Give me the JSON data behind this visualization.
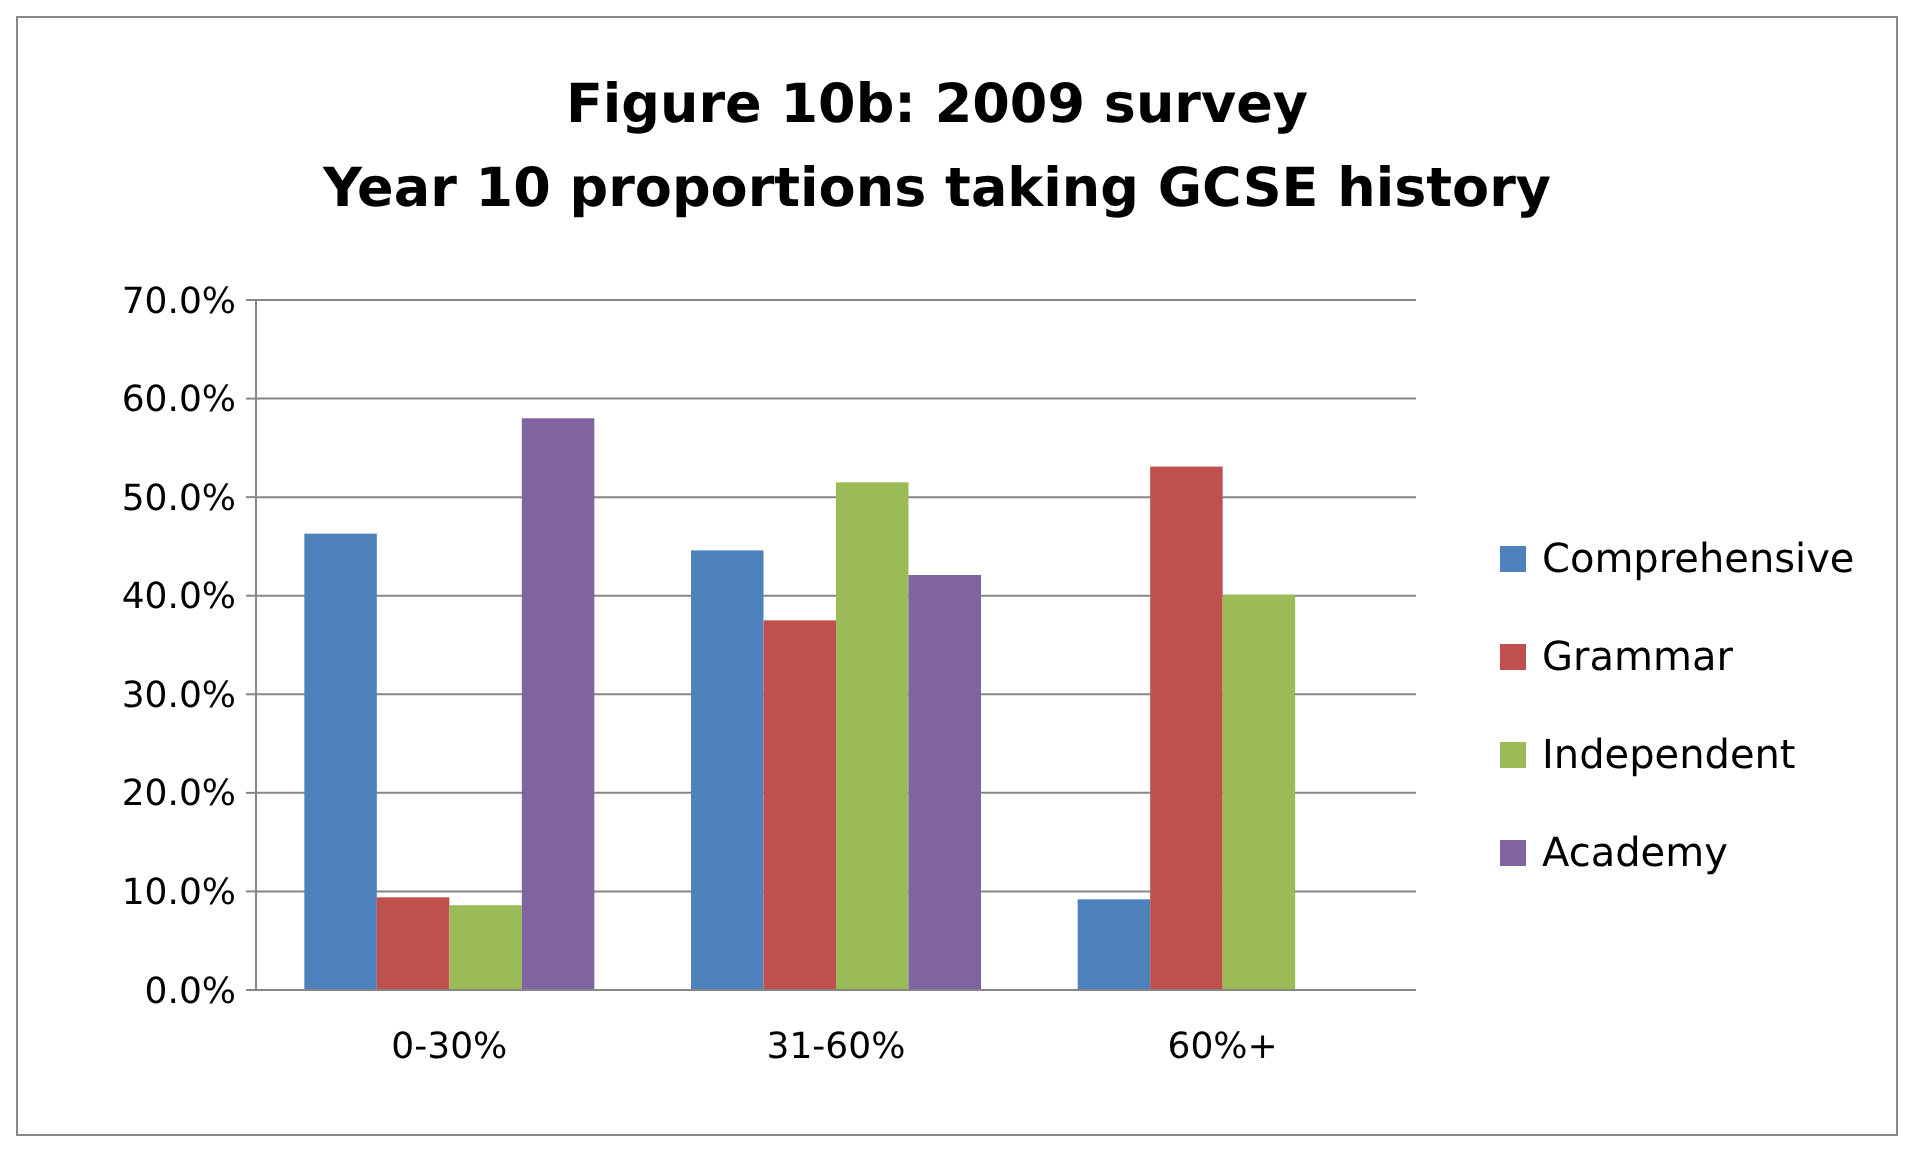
{
  "chart_data": {
    "type": "bar",
    "title": "Figure 10b: 2009 survey",
    "subtitle": "Year 10 proportions taking GCSE history",
    "categories": [
      "0-30%",
      "31-60%",
      "60%+"
    ],
    "series": [
      {
        "name": "Comprehensive",
        "color": "#4f81bd",
        "values": [
          46.3,
          44.6,
          9.2
        ]
      },
      {
        "name": "Grammar",
        "color": "#c0504d",
        "values": [
          9.4,
          37.5,
          53.1
        ]
      },
      {
        "name": "Independent",
        "color": "#9bbb59",
        "values": [
          8.6,
          51.5,
          40.1
        ]
      },
      {
        "name": "Academy",
        "color": "#8064a2",
        "values": [
          58.0,
          42.1,
          null
        ]
      }
    ],
    "ylim": [
      0,
      70
    ],
    "yticks": [
      {
        "value": 0,
        "label": "0.0%"
      },
      {
        "value": 10,
        "label": "10.0%"
      },
      {
        "value": 20,
        "label": "20.0%"
      },
      {
        "value": 30,
        "label": "30.0%"
      },
      {
        "value": 40,
        "label": "40.0%"
      },
      {
        "value": 50,
        "label": "50.0%"
      },
      {
        "value": 60,
        "label": "60.0%"
      },
      {
        "value": 70,
        "label": "70.0%"
      }
    ],
    "grid": "y",
    "legend": "right"
  }
}
